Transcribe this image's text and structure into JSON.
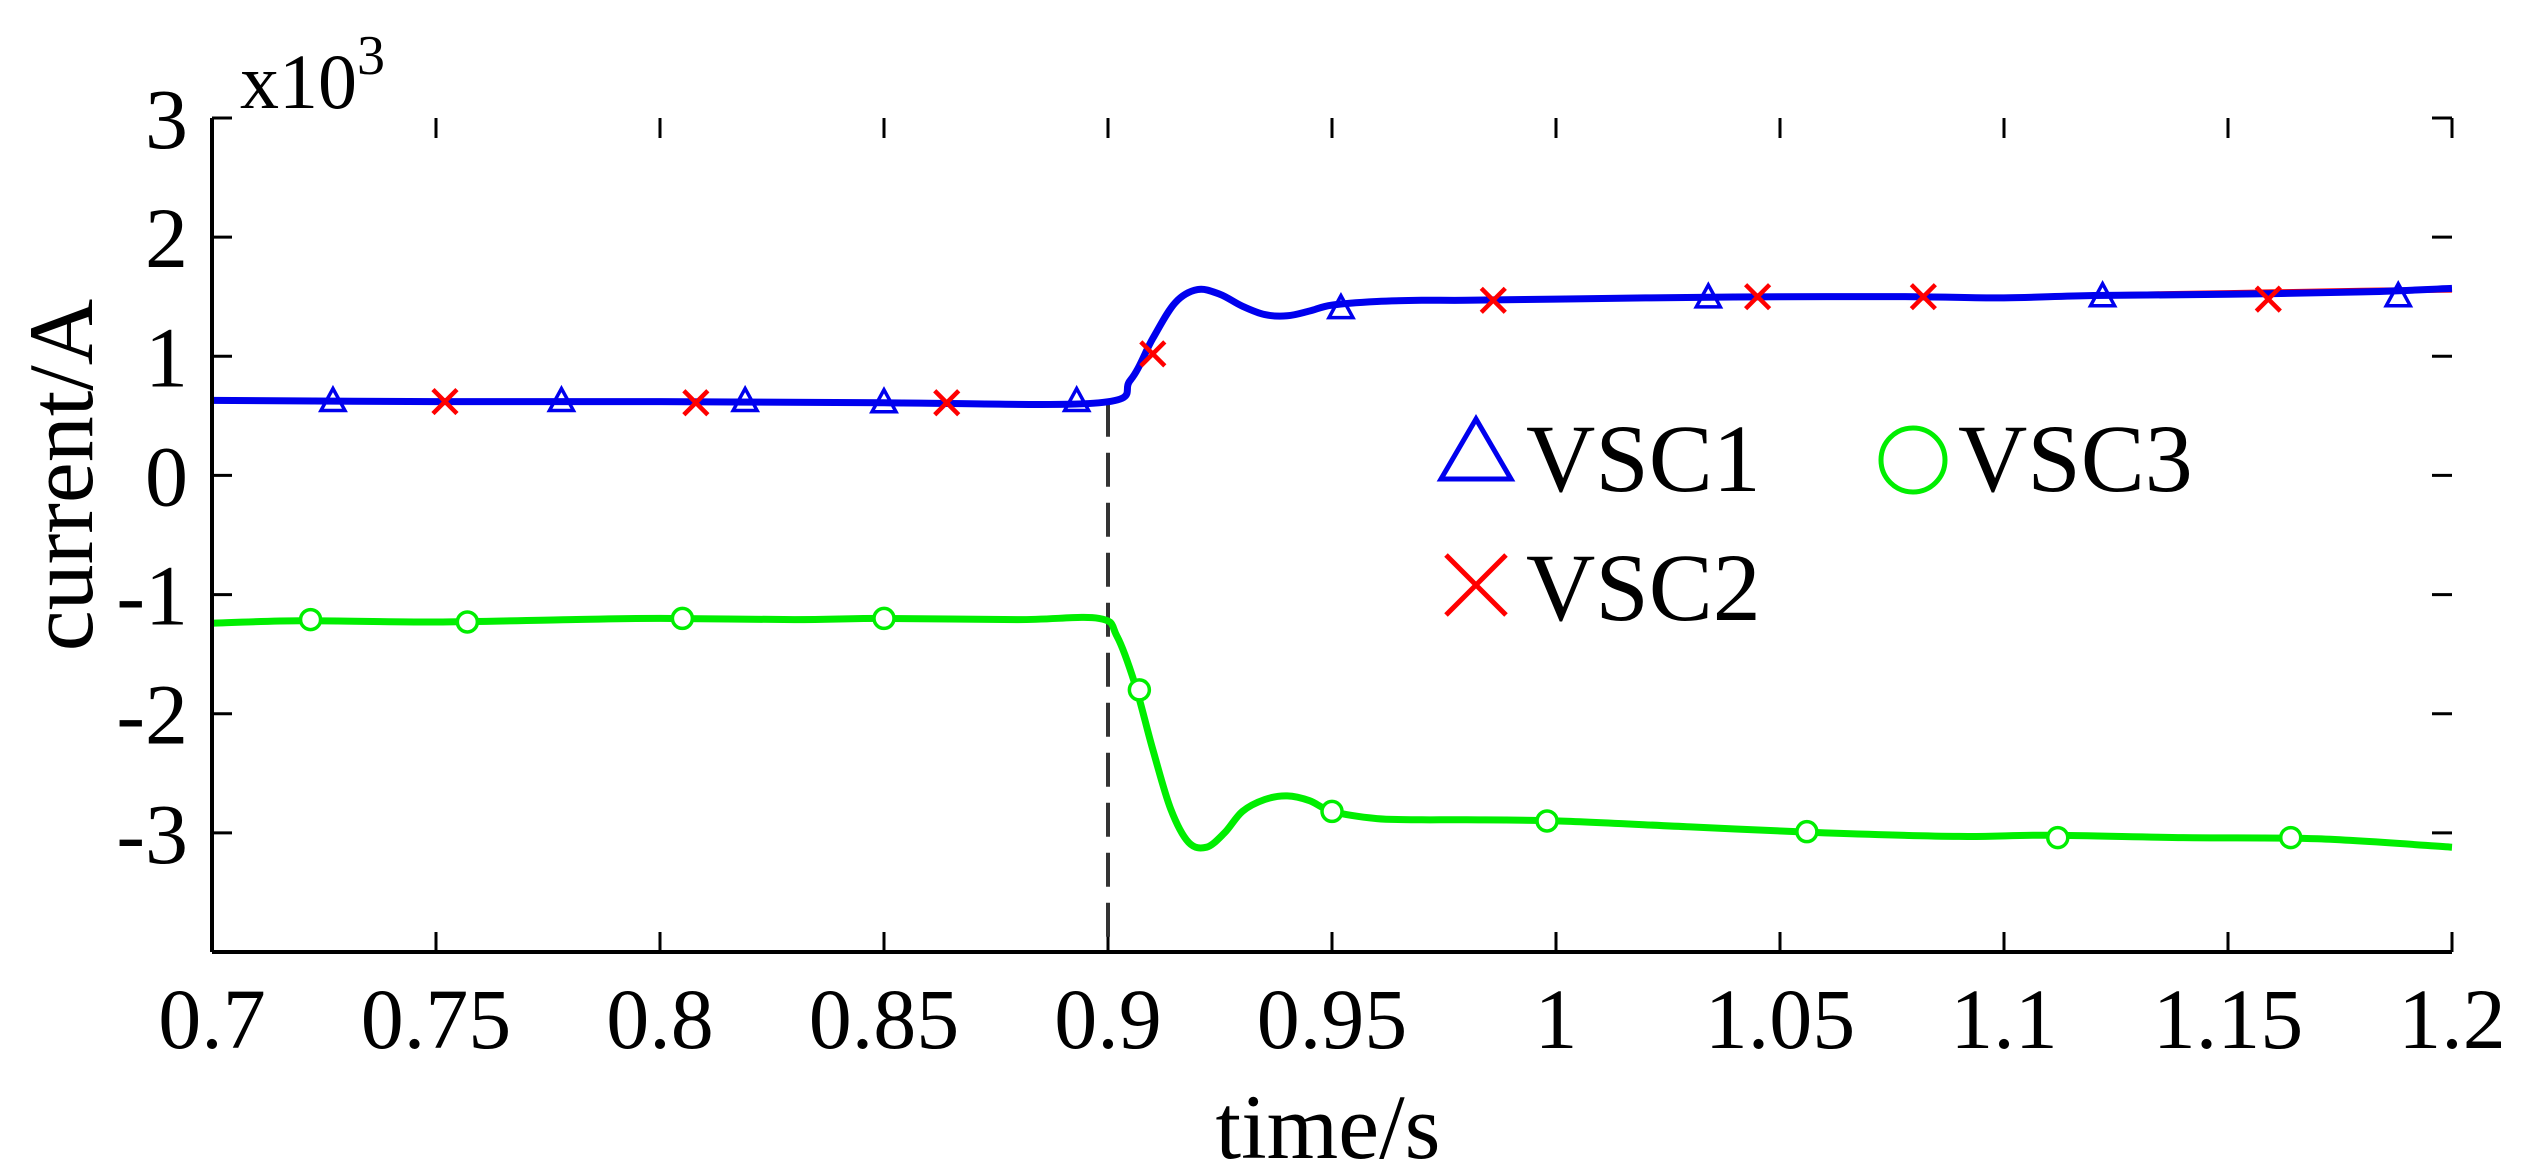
{
  "chart_data": {
    "type": "line",
    "title": "",
    "xlabel": "time/s",
    "ylabel": "current/A",
    "y_multiplier": {
      "base": "x10",
      "exponent": "3"
    },
    "xlim": [
      0.7,
      1.2
    ],
    "ylim": [
      -4,
      3
    ],
    "x_ticks": [
      0.7,
      0.75,
      0.8,
      0.85,
      0.9,
      0.95,
      1.0,
      1.05,
      1.1,
      1.15,
      1.2
    ],
    "x_tick_labels": [
      "0.7",
      "0.75",
      "0.8",
      "0.85",
      "0.9",
      "0.95",
      "1",
      "1.05",
      "1.1",
      "1.15",
      "1.2"
    ],
    "y_ticks": [
      -3,
      -2,
      -1,
      0,
      1,
      2,
      3
    ],
    "y_tick_labels": [
      "-3",
      "-2",
      "-1",
      "0",
      "1",
      "2",
      "3"
    ],
    "event_line_x": 0.9,
    "legend": {
      "position": "upper-right",
      "entries": [
        "VSC1",
        "VSC2",
        "VSC3"
      ]
    },
    "series": [
      {
        "name": "VSC1",
        "color": "#0000ee",
        "marker": "triangle",
        "x": [
          0.7,
          0.75,
          0.8,
          0.85,
          0.898,
          0.905,
          0.91,
          0.915,
          0.92,
          0.925,
          0.93,
          0.935,
          0.94,
          0.945,
          0.95,
          0.96,
          0.97,
          0.98,
          1.0,
          1.02,
          1.05,
          1.08,
          1.1,
          1.12,
          1.15,
          1.18,
          1.2
        ],
        "values": [
          0.63,
          0.62,
          0.62,
          0.61,
          0.61,
          0.8,
          1.15,
          1.45,
          1.56,
          1.52,
          1.42,
          1.35,
          1.34,
          1.38,
          1.43,
          1.46,
          1.47,
          1.47,
          1.48,
          1.49,
          1.5,
          1.5,
          1.49,
          1.51,
          1.52,
          1.54,
          1.57
        ],
        "markers_x": [
          0.727,
          0.778,
          0.819,
          0.85,
          0.893,
          0.952,
          1.034,
          1.122,
          1.188
        ],
        "markers_y": [
          0.62,
          0.62,
          0.62,
          0.61,
          0.62,
          1.4,
          1.49,
          1.5,
          1.5
        ]
      },
      {
        "name": "VSC2",
        "color": "#ff0000",
        "marker": "x",
        "x": [
          0.7,
          0.75,
          0.8,
          0.85,
          0.898,
          0.905,
          0.91,
          0.915,
          0.92,
          0.925,
          0.93,
          0.935,
          0.94,
          0.945,
          0.95,
          0.96,
          0.97,
          0.98,
          1.0,
          1.02,
          1.05,
          1.08,
          1.1,
          1.12,
          1.15,
          1.18,
          1.2
        ],
        "values": [
          0.63,
          0.62,
          0.62,
          0.61,
          0.61,
          0.8,
          1.15,
          1.45,
          1.56,
          1.52,
          1.42,
          1.35,
          1.34,
          1.38,
          1.43,
          1.46,
          1.47,
          1.47,
          1.48,
          1.49,
          1.5,
          1.5,
          1.49,
          1.51,
          1.53,
          1.55,
          1.56
        ],
        "markers_x": [
          0.752,
          0.808,
          0.864,
          0.91,
          0.986,
          1.045,
          1.082,
          1.159
        ],
        "markers_y": [
          0.62,
          0.61,
          0.61,
          1.02,
          1.47,
          1.5,
          1.5,
          1.48
        ]
      },
      {
        "name": "VSC3",
        "color": "#00ee00",
        "marker": "circle",
        "x": [
          0.7,
          0.72,
          0.75,
          0.78,
          0.8,
          0.83,
          0.85,
          0.88,
          0.898,
          0.902,
          0.906,
          0.91,
          0.914,
          0.918,
          0.922,
          0.926,
          0.93,
          0.935,
          0.94,
          0.945,
          0.95,
          0.96,
          0.97,
          0.98,
          1.0,
          1.03,
          1.06,
          1.09,
          1.11,
          1.14,
          1.17,
          1.2
        ],
        "values": [
          -1.24,
          -1.22,
          -1.23,
          -1.21,
          -1.2,
          -1.21,
          -1.2,
          -1.21,
          -1.2,
          -1.35,
          -1.75,
          -2.3,
          -2.8,
          -3.08,
          -3.12,
          -3.0,
          -2.82,
          -2.72,
          -2.69,
          -2.73,
          -2.82,
          -2.88,
          -2.89,
          -2.89,
          -2.9,
          -2.95,
          -3.0,
          -3.03,
          -3.02,
          -3.04,
          -3.05,
          -3.12
        ],
        "markers_x": [
          0.722,
          0.757,
          0.805,
          0.85,
          0.907,
          0.95,
          0.998,
          1.056,
          1.112,
          1.164
        ],
        "markers_y": [
          -1.21,
          -1.23,
          -1.2,
          -1.2,
          -1.8,
          -2.82,
          -2.9,
          -2.99,
          -3.04,
          -3.04
        ]
      }
    ]
  }
}
